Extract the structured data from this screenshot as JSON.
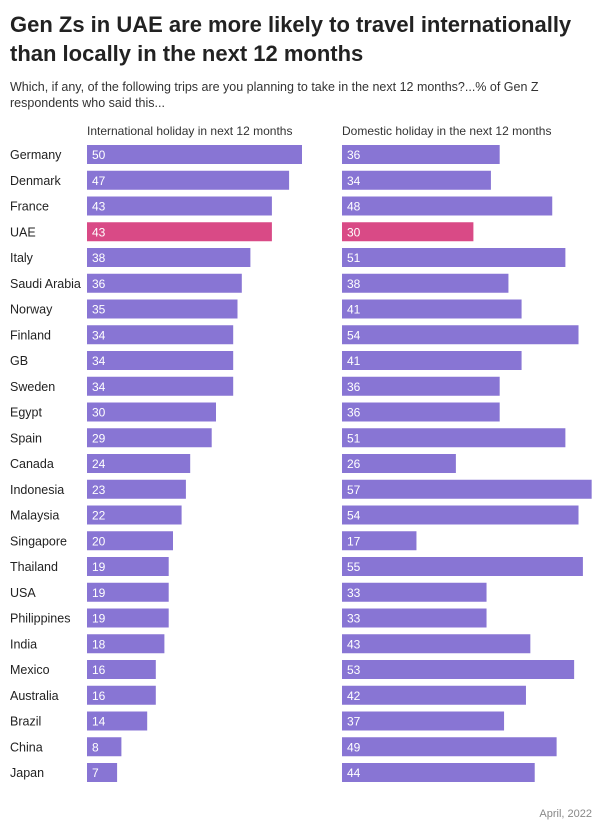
{
  "title": "Gen Zs in UAE are more likely to travel internationally than locally in the next 12 months",
  "subtitle": "Which, if any, of the following trips are you planning to take in the next 12 months?...% of Gen Z respondents who said this...",
  "footer": "April, 2022",
  "colors": {
    "bar": "#8875d4",
    "highlight": "#d94a86",
    "label": "#ffffff",
    "category": "#222222"
  },
  "chart_data": {
    "type": "bar",
    "orientation": "horizontal",
    "highlight_category": "UAE",
    "categories": [
      "Germany",
      "Denmark",
      "France",
      "UAE",
      "Italy",
      "Saudi Arabia",
      "Norway",
      "Finland",
      "GB",
      "Sweden",
      "Egypt",
      "Spain",
      "Canada",
      "Indonesia",
      "Malaysia",
      "Singapore",
      "Thailand",
      "USA",
      "Philippines",
      "India",
      "Mexico",
      "Australia",
      "Brazil",
      "China",
      "Japan"
    ],
    "series": [
      {
        "name": "International holiday in next 12 months",
        "values": [
          50,
          47,
          43,
          43,
          38,
          36,
          35,
          34,
          34,
          34,
          30,
          29,
          24,
          23,
          22,
          20,
          19,
          19,
          19,
          18,
          16,
          16,
          14,
          8,
          7
        ]
      },
      {
        "name": "Domestic holiday in the next 12 months",
        "values": [
          36,
          34,
          48,
          30,
          51,
          38,
          41,
          54,
          41,
          36,
          36,
          51,
          26,
          57,
          54,
          17,
          55,
          33,
          33,
          43,
          53,
          42,
          37,
          49,
          44
        ]
      }
    ],
    "grid": false
  }
}
